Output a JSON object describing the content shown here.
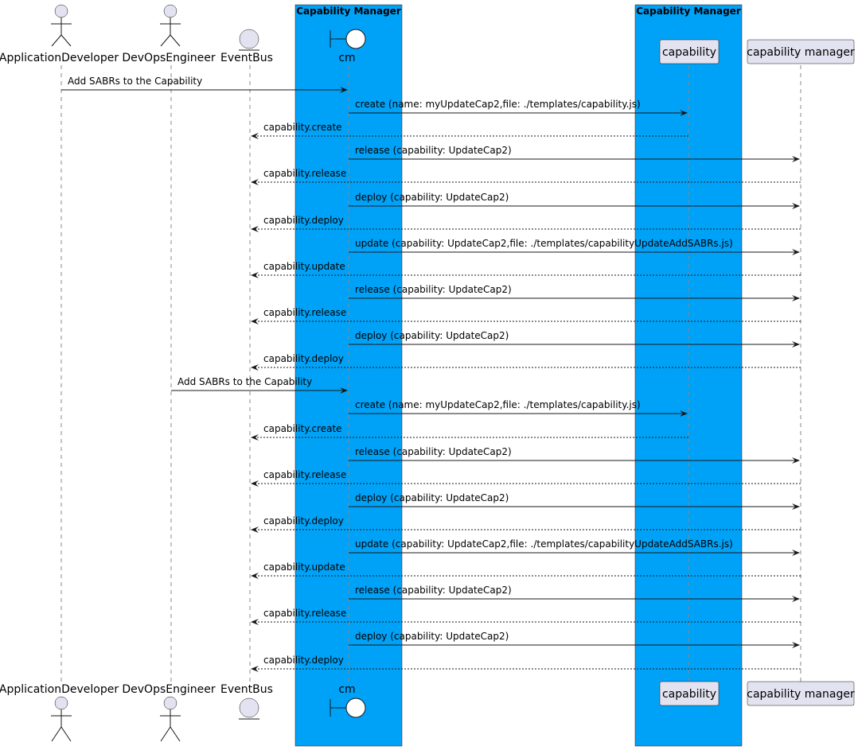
{
  "colors": {
    "box_fill": "#00a2f7",
    "participant_fill": "#e2e2f0",
    "line": "#181818"
  },
  "boxes": [
    {
      "id": "box-cm",
      "title": "Capability Manager"
    },
    {
      "id": "box-capability",
      "title": "Capability Manager"
    }
  ],
  "participants": [
    {
      "id": "app-dev",
      "label": "ApplicationDeveloper",
      "kind": "actor"
    },
    {
      "id": "devops",
      "label": "DevOpsEngineer",
      "kind": "actor"
    },
    {
      "id": "eventbus",
      "label": "EventBus",
      "kind": "entity"
    },
    {
      "id": "cm",
      "label": "cm",
      "kind": "boundary"
    },
    {
      "id": "capability",
      "label": "capability",
      "kind": "participant"
    },
    {
      "id": "capmgr",
      "label": "capability manager",
      "kind": "participant"
    }
  ],
  "messages": [
    {
      "from": "app-dev",
      "to": "cm",
      "label": "Add SABRs to the Capability",
      "style": "solid"
    },
    {
      "from": "cm",
      "to": "capability",
      "label": "create (name: myUpdateCap2,file: ./templates/capability.js)",
      "style": "solid"
    },
    {
      "from": "capability",
      "to": "eventbus",
      "label": "capability.create",
      "style": "dashed"
    },
    {
      "from": "cm",
      "to": "capmgr",
      "label": "release (capability: UpdateCap2)",
      "style": "solid"
    },
    {
      "from": "capmgr",
      "to": "eventbus",
      "label": "capability.release",
      "style": "dashed"
    },
    {
      "from": "cm",
      "to": "capmgr",
      "label": "deploy (capability: UpdateCap2)",
      "style": "solid"
    },
    {
      "from": "capmgr",
      "to": "eventbus",
      "label": "capability.deploy",
      "style": "dashed"
    },
    {
      "from": "cm",
      "to": "capmgr",
      "label": "update (capability: UpdateCap2,file: ./templates/capabilityUpdateAddSABRs.js)",
      "style": "solid"
    },
    {
      "from": "capmgr",
      "to": "eventbus",
      "label": "capability.update",
      "style": "dashed"
    },
    {
      "from": "cm",
      "to": "capmgr",
      "label": "release (capability: UpdateCap2)",
      "style": "solid"
    },
    {
      "from": "capmgr",
      "to": "eventbus",
      "label": "capability.release",
      "style": "dashed"
    },
    {
      "from": "cm",
      "to": "capmgr",
      "label": "deploy (capability: UpdateCap2)",
      "style": "solid"
    },
    {
      "from": "capmgr",
      "to": "eventbus",
      "label": "capability.deploy",
      "style": "dashed"
    },
    {
      "from": "devops",
      "to": "cm",
      "label": "Add SABRs to the Capability",
      "style": "solid"
    },
    {
      "from": "cm",
      "to": "capability",
      "label": "create (name: myUpdateCap2,file: ./templates/capability.js)",
      "style": "solid"
    },
    {
      "from": "capability",
      "to": "eventbus",
      "label": "capability.create",
      "style": "dashed"
    },
    {
      "from": "cm",
      "to": "capmgr",
      "label": "release (capability: UpdateCap2)",
      "style": "solid"
    },
    {
      "from": "capmgr",
      "to": "eventbus",
      "label": "capability.release",
      "style": "dashed"
    },
    {
      "from": "cm",
      "to": "capmgr",
      "label": "deploy (capability: UpdateCap2)",
      "style": "solid"
    },
    {
      "from": "capmgr",
      "to": "eventbus",
      "label": "capability.deploy",
      "style": "dashed"
    },
    {
      "from": "cm",
      "to": "capmgr",
      "label": "update (capability: UpdateCap2,file: ./templates/capabilityUpdateAddSABRs.js)",
      "style": "solid"
    },
    {
      "from": "capmgr",
      "to": "eventbus",
      "label": "capability.update",
      "style": "dashed"
    },
    {
      "from": "cm",
      "to": "capmgr",
      "label": "release (capability: UpdateCap2)",
      "style": "solid"
    },
    {
      "from": "capmgr",
      "to": "eventbus",
      "label": "capability.release",
      "style": "dashed"
    },
    {
      "from": "cm",
      "to": "capmgr",
      "label": "deploy (capability: UpdateCap2)",
      "style": "solid"
    },
    {
      "from": "capmgr",
      "to": "eventbus",
      "label": "capability.deploy",
      "style": "dashed"
    }
  ]
}
